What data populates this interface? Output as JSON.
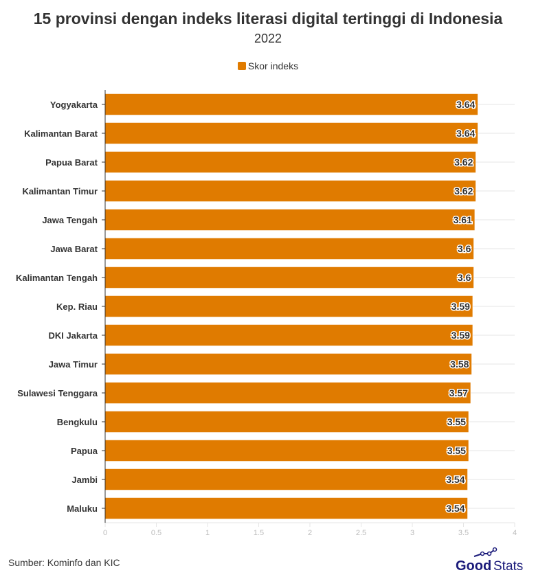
{
  "chart_data": {
    "type": "bar",
    "orientation": "horizontal",
    "title": "15 provinsi dengan indeks literasi digital tertinggi di Indonesia",
    "subtitle": "2022",
    "categories": [
      "Yogyakarta",
      "Kalimantan Barat",
      "Papua Barat",
      "Kalimantan Timur",
      "Jawa Tengah",
      "Jawa Barat",
      "Kalimantan Tengah",
      "Kep. Riau",
      "DKI Jakarta",
      "Jawa Timur",
      "Sulawesi Tenggara",
      "Bengkulu",
      "Papua",
      "Jambi",
      "Maluku"
    ],
    "series": [
      {
        "name": "Skor indeks",
        "values": [
          3.64,
          3.64,
          3.62,
          3.62,
          3.61,
          3.6,
          3.6,
          3.59,
          3.59,
          3.58,
          3.57,
          3.55,
          3.55,
          3.54,
          3.54
        ],
        "color": "#E07B00"
      }
    ],
    "xlim": [
      0,
      4
    ],
    "xticks": [
      "0",
      "0.5",
      "1",
      "1.5",
      "2",
      "2.5",
      "3",
      "3.5",
      "4"
    ],
    "grid": true,
    "legend_position": "top"
  },
  "source": "Sumber: Kominfo dan KIC",
  "logo": "GoodStats"
}
